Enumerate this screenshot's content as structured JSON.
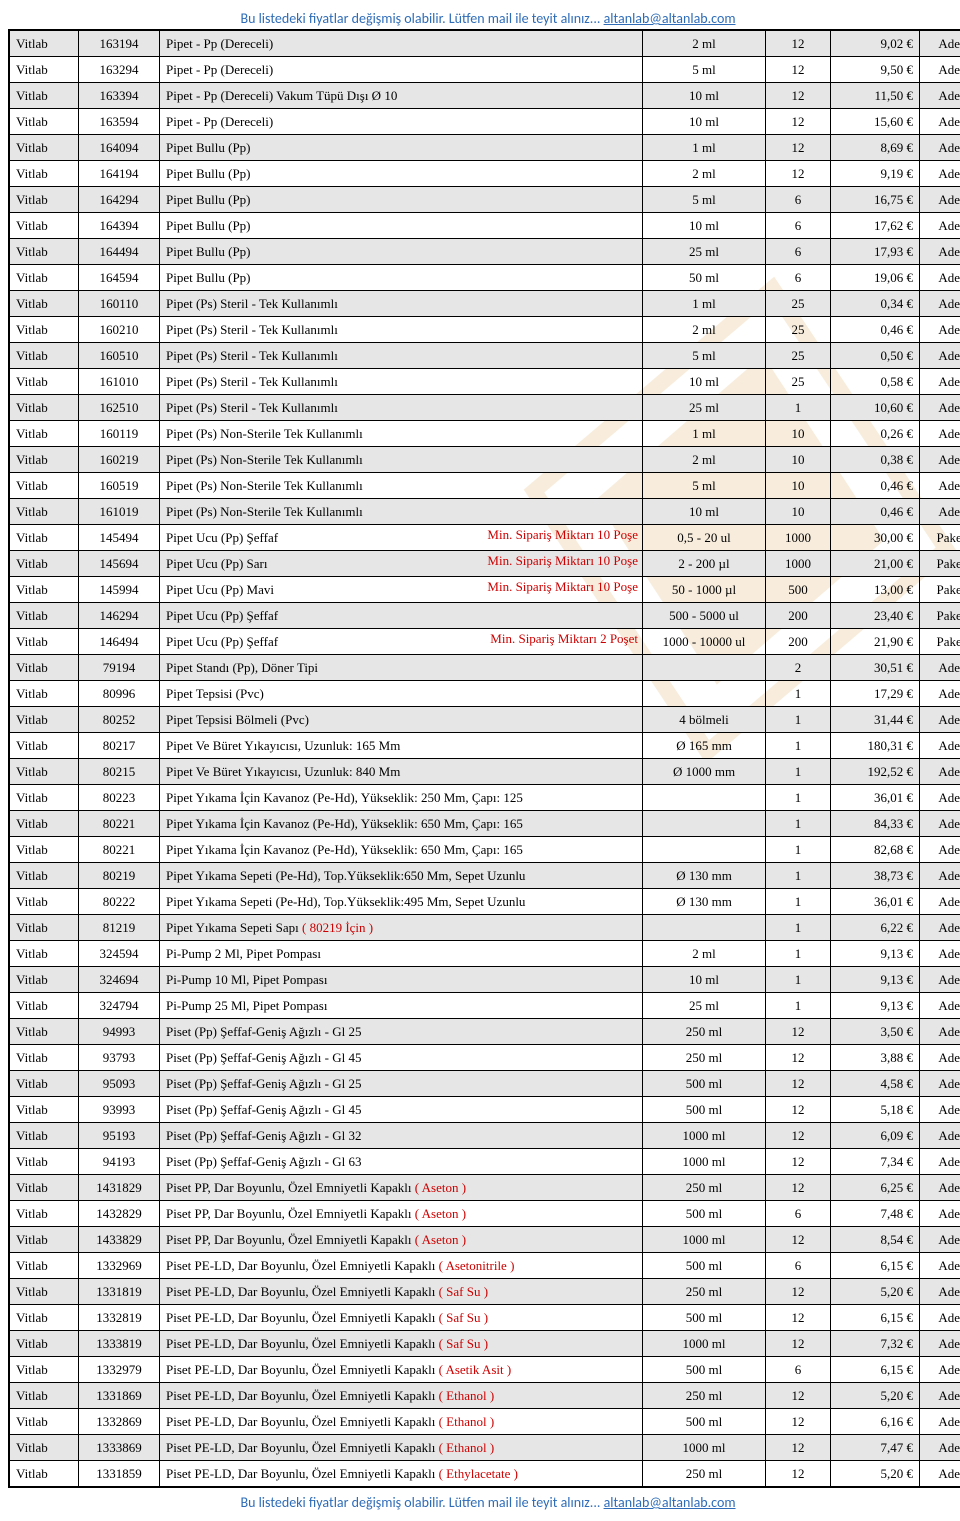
{
  "notice": {
    "text": "Bu listedeki fiyatlar değişmiş olabilir. Lütfen mail ile teyit alınız...   ",
    "email": "altanlab@altanlab.com"
  },
  "colors": {
    "alt_row": "#e6e6e6",
    "annot": "#cc0000",
    "notice": "#2E6CB8",
    "border": "#000000"
  },
  "rows": [
    {
      "brand": "Vitlab",
      "code": "163194",
      "desc": "Pipet - Pp (Dereceli)",
      "annot": "",
      "size": "2 ml",
      "qty": "12",
      "price": "9,02 €",
      "unit": "Adet"
    },
    {
      "brand": "Vitlab",
      "code": "163294",
      "desc": "Pipet - Pp (Dereceli)",
      "annot": "",
      "size": "5 ml",
      "qty": "12",
      "price": "9,50 €",
      "unit": "Adet"
    },
    {
      "brand": "Vitlab",
      "code": "163394",
      "desc": "Pipet - Pp (Dereceli) Vakum Tüpü Dışı Ø 10",
      "annot": "",
      "size": "10 ml",
      "qty": "12",
      "price": "11,50 €",
      "unit": "Adet"
    },
    {
      "brand": "Vitlab",
      "code": "163594",
      "desc": "Pipet - Pp (Dereceli)",
      "annot": "",
      "size": "10 ml",
      "qty": "12",
      "price": "15,60 €",
      "unit": "Adet"
    },
    {
      "brand": "Vitlab",
      "code": "164094",
      "desc": "Pipet Bullu (Pp)",
      "annot": "",
      "size": "1 ml",
      "qty": "12",
      "price": "8,69 €",
      "unit": "Adet"
    },
    {
      "brand": "Vitlab",
      "code": "164194",
      "desc": "Pipet Bullu (Pp)",
      "annot": "",
      "size": "2 ml",
      "qty": "12",
      "price": "9,19 €",
      "unit": "Adet"
    },
    {
      "brand": "Vitlab",
      "code": "164294",
      "desc": "Pipet Bullu (Pp)",
      "annot": "",
      "size": "5 ml",
      "qty": "6",
      "price": "16,75 €",
      "unit": "Adet"
    },
    {
      "brand": "Vitlab",
      "code": "164394",
      "desc": "Pipet Bullu (Pp)",
      "annot": "",
      "size": "10 ml",
      "qty": "6",
      "price": "17,62 €",
      "unit": "Adet"
    },
    {
      "brand": "Vitlab",
      "code": "164494",
      "desc": "Pipet Bullu (Pp)",
      "annot": "",
      "size": "25 ml",
      "qty": "6",
      "price": "17,93 €",
      "unit": "Adet"
    },
    {
      "brand": "Vitlab",
      "code": "164594",
      "desc": "Pipet Bullu (Pp)",
      "annot": "",
      "size": "50 ml",
      "qty": "6",
      "price": "19,06 €",
      "unit": "Adet"
    },
    {
      "brand": "Vitlab",
      "code": "160110",
      "desc": "Pipet (Ps) Steril - Tek Kullanımlı",
      "annot": "",
      "size": "1 ml",
      "qty": "25",
      "price": "0,34 €",
      "unit": "Adet"
    },
    {
      "brand": "Vitlab",
      "code": "160210",
      "desc": "Pipet (Ps) Steril - Tek Kullanımlı",
      "annot": "",
      "size": "2 ml",
      "qty": "25",
      "price": "0,46 €",
      "unit": "Adet"
    },
    {
      "brand": "Vitlab",
      "code": "160510",
      "desc": "Pipet (Ps) Steril - Tek Kullanımlı",
      "annot": "",
      "size": "5 ml",
      "qty": "25",
      "price": "0,50 €",
      "unit": "Adet"
    },
    {
      "brand": "Vitlab",
      "code": "161010",
      "desc": "Pipet (Ps) Steril - Tek Kullanımlı",
      "annot": "",
      "size": "10 ml",
      "qty": "25",
      "price": "0,58 €",
      "unit": "Adet"
    },
    {
      "brand": "Vitlab",
      "code": "162510",
      "desc": "Pipet (Ps) Steril - Tek Kullanımlı",
      "annot": "",
      "size": "25 ml",
      "qty": "1",
      "price": "10,60 €",
      "unit": "Adet"
    },
    {
      "brand": "Vitlab",
      "code": "160119",
      "desc": "Pipet (Ps) Non-Sterile Tek Kullanımlı",
      "annot": "",
      "size": "1 ml",
      "qty": "10",
      "price": "0,26 €",
      "unit": "Adet"
    },
    {
      "brand": "Vitlab",
      "code": "160219",
      "desc": "Pipet (Ps) Non-Sterile Tek Kullanımlı",
      "annot": "",
      "size": "2 ml",
      "qty": "10",
      "price": "0,38 €",
      "unit": "Adet"
    },
    {
      "brand": "Vitlab",
      "code": "160519",
      "desc": "Pipet (Ps) Non-Sterile Tek Kullanımlı",
      "annot": "",
      "size": "5 ml",
      "qty": "10",
      "price": "0,46 €",
      "unit": "Adet"
    },
    {
      "brand": "Vitlab",
      "code": "161019",
      "desc": "Pipet (Ps) Non-Sterile Tek Kullanımlı",
      "annot": "",
      "size": "10 ml",
      "qty": "10",
      "price": "0,46 €",
      "unit": "Adet"
    },
    {
      "brand": "Vitlab",
      "code": "145494",
      "desc": "Pipet Ucu (Pp) Şeffaf",
      "annot": "Min. Sipariş Miktarı 10 Poşe",
      "size": "0,5 - 20 ul",
      "qty": "1000",
      "price": "30,00 €",
      "unit": "Paket"
    },
    {
      "brand": "Vitlab",
      "code": "145694",
      "desc": "Pipet Ucu (Pp) Sarı",
      "annot": "Min. Sipariş Miktarı 10 Poşe",
      "size": "2 - 200 µl",
      "qty": "1000",
      "price": "21,00 €",
      "unit": "Paket"
    },
    {
      "brand": "Vitlab",
      "code": "145994",
      "desc": "Pipet Ucu (Pp) Mavi",
      "annot": "Min. Sipariş Miktarı 10 Poşe",
      "size": "50 - 1000 µl",
      "qty": "500",
      "price": "13,00 €",
      "unit": "Paket"
    },
    {
      "brand": "Vitlab",
      "code": "146294",
      "desc": "Pipet Ucu (Pp) Şeffaf",
      "annot": "",
      "size": "500 - 5000 ul",
      "qty": "200",
      "price": "23,40 €",
      "unit": "Paket"
    },
    {
      "brand": "Vitlab",
      "code": "146494",
      "desc": "Pipet Ucu (Pp) Şeffaf",
      "annot": "Min. Sipariş Miktarı 2 Poşet",
      "size": "1000 - 10000 ul",
      "qty": "200",
      "price": "21,90 €",
      "unit": "Paket"
    },
    {
      "brand": "Vitlab",
      "code": "79194",
      "desc": "Pipet Standı (Pp), Döner Tipi",
      "annot": "",
      "size": "",
      "qty": "2",
      "price": "30,51 €",
      "unit": "Adet"
    },
    {
      "brand": "Vitlab",
      "code": "80996",
      "desc": "Pipet Tepsisi (Pvc)",
      "annot": "",
      "size": "",
      "qty": "1",
      "price": "17,29 €",
      "unit": "Adet"
    },
    {
      "brand": "Vitlab",
      "code": "80252",
      "desc": "Pipet Tepsisi Bölmeli (Pvc)",
      "annot": "",
      "size": "4 bölmeli",
      "qty": "1",
      "price": "31,44 €",
      "unit": "Adet"
    },
    {
      "brand": "Vitlab",
      "code": "80217",
      "desc": "Pipet Ve Büret Yıkayıcısı, Uzunluk: 165 Mm",
      "annot": "",
      "size": "Ø 165 mm",
      "qty": "1",
      "price": "180,31 €",
      "unit": "Adet"
    },
    {
      "brand": "Vitlab",
      "code": "80215",
      "desc": "Pipet Ve Büret Yıkayıcısı, Uzunluk: 840 Mm",
      "annot": "",
      "size": "Ø 1000 mm",
      "qty": "1",
      "price": "192,52 €",
      "unit": "Adet"
    },
    {
      "brand": "Vitlab",
      "code": "80223",
      "desc": "Pipet Yıkama İçin Kavanoz (Pe-Hd), Yükseklik: 250 Mm, Çapı: 125",
      "annot": "",
      "size": "",
      "qty": "1",
      "price": "36,01 €",
      "unit": "Adet"
    },
    {
      "brand": "Vitlab",
      "code": "80221",
      "desc": "Pipet Yıkama İçin Kavanoz (Pe-Hd), Yükseklik: 650 Mm, Çapı: 165",
      "annot": "",
      "size": "",
      "qty": "1",
      "price": "84,33 €",
      "unit": "Adet"
    },
    {
      "brand": "Vitlab",
      "code": "80221",
      "desc": "Pipet Yıkama İçin Kavanoz (Pe-Hd), Yükseklik: 650 Mm, Çapı: 165",
      "annot": "",
      "size": "",
      "qty": "1",
      "price": "82,68 €",
      "unit": "Adet"
    },
    {
      "brand": "Vitlab",
      "code": "80219",
      "desc": "Pipet Yıkama Sepeti (Pe-Hd), Top.Yükseklik:650 Mm, Sepet Uzunlu",
      "annot": "",
      "size": "Ø 130 mm",
      "qty": "1",
      "price": "38,73 €",
      "unit": "Adet"
    },
    {
      "brand": "Vitlab",
      "code": "80222",
      "desc": "Pipet Yıkama Sepeti (Pe-Hd), Top.Yükseklik:495 Mm, Sepet Uzunlu",
      "annot": "",
      "size": "Ø 130 mm",
      "qty": "1",
      "price": "36,01 €",
      "unit": "Adet"
    },
    {
      "brand": "Vitlab",
      "code": "81219",
      "desc": "Pipet Yıkama Sepeti Sapı     ",
      "annot_inline": "( 80219 İçin )",
      "size": "",
      "qty": "1",
      "price": "6,22 €",
      "unit": "Adet"
    },
    {
      "brand": "Vitlab",
      "code": "324594",
      "desc": "Pi-Pump 2 Ml, Pipet Pompası",
      "annot": "",
      "size": "2 ml",
      "qty": "1",
      "price": "9,13 €",
      "unit": "Adet"
    },
    {
      "brand": "Vitlab",
      "code": "324694",
      "desc": "Pi-Pump 10 Ml, Pipet Pompası",
      "annot": "",
      "size": "10 ml",
      "qty": "1",
      "price": "9,13 €",
      "unit": "Adet"
    },
    {
      "brand": "Vitlab",
      "code": "324794",
      "desc": "Pi-Pump 25 Ml, Pipet Pompası",
      "annot": "",
      "size": "25 ml",
      "qty": "1",
      "price": "9,13 €",
      "unit": "Adet"
    },
    {
      "brand": "Vitlab",
      "code": "94993",
      "desc": "Piset (Pp) Şeffaf-Geniş Ağızlı - Gl 25",
      "annot": "",
      "size": "250 ml",
      "qty": "12",
      "price": "3,50 €",
      "unit": "Adet"
    },
    {
      "brand": "Vitlab",
      "code": "93793",
      "desc": "Piset (Pp) Şeffaf-Geniş Ağızlı - Gl 45",
      "annot": "",
      "size": "250 ml",
      "qty": "12",
      "price": "3,88 €",
      "unit": "Adet"
    },
    {
      "brand": "Vitlab",
      "code": "95093",
      "desc": "Piset (Pp) Şeffaf-Geniş Ağızlı - Gl 25",
      "annot": "",
      "size": "500 ml",
      "qty": "12",
      "price": "4,58 €",
      "unit": "Adet"
    },
    {
      "brand": "Vitlab",
      "code": "93993",
      "desc": "Piset (Pp) Şeffaf-Geniş Ağızlı - Gl 45",
      "annot": "",
      "size": "500 ml",
      "qty": "12",
      "price": "5,18 €",
      "unit": "Adet"
    },
    {
      "brand": "Vitlab",
      "code": "95193",
      "desc": "Piset (Pp) Şeffaf-Geniş Ağızlı - Gl 32",
      "annot": "",
      "size": "1000 ml",
      "qty": "12",
      "price": "6,09 €",
      "unit": "Adet"
    },
    {
      "brand": "Vitlab",
      "code": "94193",
      "desc": "Piset (Pp) Şeffaf-Geniş Ağızlı - Gl 63",
      "annot": "",
      "size": "1000 ml",
      "qty": "12",
      "price": "7,34 €",
      "unit": "Adet"
    },
    {
      "brand": "Vitlab",
      "code": "1431829",
      "desc": "Piset PP, Dar Boyunlu, Özel Emniyetli Kapaklı  ",
      "annot_inline": "( Aseton )",
      "size": "250 ml",
      "qty": "12",
      "price": "6,25 €",
      "unit": "Adet"
    },
    {
      "brand": "Vitlab",
      "code": "1432829",
      "desc": "Piset PP, Dar Boyunlu, Özel Emniyetli Kapaklı  ",
      "annot_inline": "( Aseton )",
      "size": "500 ml",
      "qty": "6",
      "price": "7,48 €",
      "unit": "Adet"
    },
    {
      "brand": "Vitlab",
      "code": "1433829",
      "desc": "Piset PP, Dar Boyunlu, Özel Emniyetli Kapaklı  ",
      "annot_inline": "( Aseton )",
      "size": "1000 ml",
      "qty": "12",
      "price": "8,54 €",
      "unit": "Adet"
    },
    {
      "brand": "Vitlab",
      "code": "1332969",
      "desc": "Piset PE-LD, Dar Boyunlu, Özel Emniyetli Kapaklı  ",
      "annot_inline": "( Asetonitrile )",
      "size": "500 ml",
      "qty": "6",
      "price": "6,15 €",
      "unit": "Adet"
    },
    {
      "brand": "Vitlab",
      "code": "1331819",
      "desc": "Piset PE-LD, Dar Boyunlu, Özel Emniyetli Kapaklı  ",
      "annot_inline": "( Saf Su )",
      "size": "250 ml",
      "qty": "12",
      "price": "5,20 €",
      "unit": "Adet"
    },
    {
      "brand": "Vitlab",
      "code": "1332819",
      "desc": "Piset PE-LD, Dar Boyunlu, Özel Emniyetli Kapaklı  ",
      "annot_inline": "( Saf Su )",
      "size": "500 ml",
      "qty": "12",
      "price": "6,15 €",
      "unit": "Adet"
    },
    {
      "brand": "Vitlab",
      "code": "1333819",
      "desc": "Piset PE-LD, Dar Boyunlu, Özel Emniyetli Kapaklı  ",
      "annot_inline": "( Saf Su )",
      "size": "1000 ml",
      "qty": "12",
      "price": "7,32 €",
      "unit": "Adet"
    },
    {
      "brand": "Vitlab",
      "code": "1332979",
      "desc": "Piset PE-LD, Dar Boyunlu, Özel Emniyetli Kapaklı  ",
      "annot_inline": "( Asetik Asit )",
      "size": "500 ml",
      "qty": "6",
      "price": "6,15 €",
      "unit": "Adet"
    },
    {
      "brand": "Vitlab",
      "code": "1331869",
      "desc": "Piset PE-LD, Dar Boyunlu, Özel Emniyetli Kapaklı  ",
      "annot_inline": "( Ethanol )",
      "size": "250 ml",
      "qty": "12",
      "price": "5,20 €",
      "unit": "Adet"
    },
    {
      "brand": "Vitlab",
      "code": "1332869",
      "desc": "Piset PE-LD, Dar Boyunlu, Özel Emniyetli Kapaklı  ",
      "annot_inline": "( Ethanol )",
      "size": "500 ml",
      "qty": "12",
      "price": "6,16 €",
      "unit": "Adet"
    },
    {
      "brand": "Vitlab",
      "code": "1333869",
      "desc": "Piset PE-LD, Dar Boyunlu, Özel Emniyetli Kapaklı  ",
      "annot_inline": "( Ethanol )",
      "size": "1000 ml",
      "qty": "12",
      "price": "7,47 €",
      "unit": "Adet"
    },
    {
      "brand": "Vitlab",
      "code": "1331859",
      "desc": "Piset PE-LD, Dar Boyunlu, Özel Emniyetli Kapaklı  ",
      "annot_inline": "( Ethylacetate )",
      "size": "250 ml",
      "qty": "12",
      "price": "5,20 €",
      "unit": "Adet"
    }
  ]
}
